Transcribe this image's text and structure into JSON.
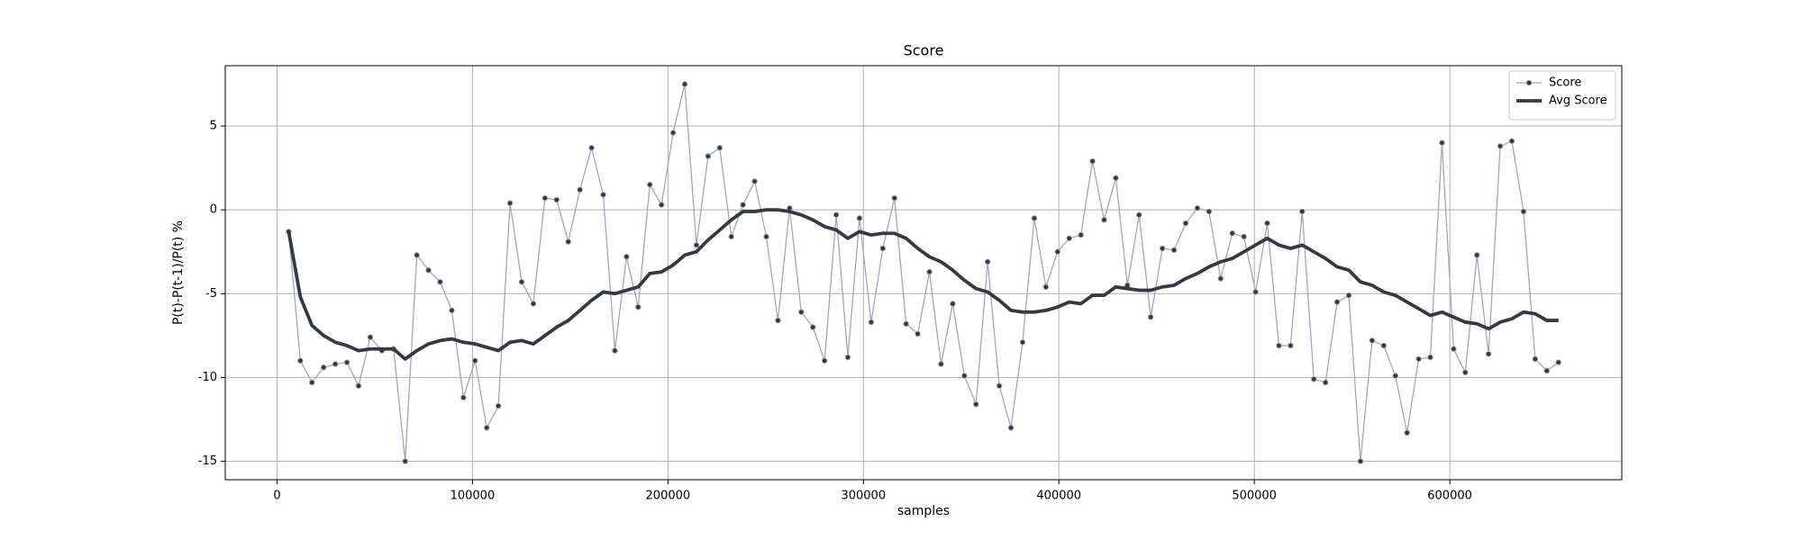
{
  "chart_data": {
    "type": "line",
    "title": "Score",
    "xlabel": "samples",
    "ylabel": "P(t)-P(t-1)/P(t) %",
    "x": [
      5960,
      11920,
      17880,
      23840,
      29800,
      35760,
      41720,
      47680,
      53640,
      59600,
      65560,
      71520,
      77480,
      83440,
      89400,
      95360,
      101320,
      107280,
      113240,
      119200,
      125160,
      131120,
      137080,
      143040,
      149000,
      154960,
      160920,
      166880,
      172840,
      178800,
      184760,
      190720,
      196680,
      202640,
      208600,
      214560,
      220520,
      226480,
      232440,
      238400,
      244360,
      250320,
      256280,
      262240,
      268200,
      274160,
      280120,
      286080,
      292040,
      298000,
      303960,
      309920,
      315880,
      321840,
      327800,
      333760,
      339720,
      345680,
      351640,
      357600,
      363560,
      369520,
      375480,
      381440,
      387400,
      393360,
      399320,
      405280,
      411240,
      417200,
      423160,
      429120,
      435080,
      441040,
      447000,
      452960,
      458920,
      464880,
      470840,
      476800,
      482760,
      488720,
      494680,
      500640,
      506600,
      512560,
      518520,
      524480,
      530440,
      536400,
      542360,
      548320,
      554280,
      560240,
      566200,
      572160,
      578120,
      584080,
      590040,
      596000,
      601960,
      607920,
      613880,
      619840,
      625800,
      631760,
      637720,
      643680,
      649640,
      655600
    ],
    "series": [
      {
        "name": "Score",
        "color": "#a3a7ba",
        "marker_color": "#2f3640",
        "marker": "o",
        "linewidth": 1.3,
        "values": [
          -1.3,
          -9.0,
          -10.3,
          -9.4,
          -9.2,
          -9.1,
          -10.5,
          -7.6,
          -8.4,
          -8.3,
          -15.0,
          -2.7,
          -3.6,
          -4.3,
          -6.0,
          -11.2,
          -9.0,
          -13.0,
          -11.7,
          0.4,
          -4.3,
          -5.6,
          0.7,
          0.6,
          -1.9,
          1.2,
          3.7,
          0.9,
          -8.4,
          -2.8,
          -5.8,
          1.5,
          0.3,
          4.6,
          7.5,
          -2.1,
          3.2,
          3.7,
          -1.6,
          0.3,
          1.7,
          -1.6,
          -6.6,
          0.1,
          -6.1,
          -7.0,
          -9.0,
          -0.3,
          -8.8,
          -0.5,
          -6.7,
          -2.3,
          0.7,
          -6.8,
          -7.4,
          -3.7,
          -9.2,
          -5.6,
          -9.9,
          -11.6,
          -3.1,
          -10.5,
          -13.0,
          -7.9,
          -0.5,
          -4.6,
          -2.5,
          -1.7,
          -1.5,
          2.9,
          -0.6,
          1.9,
          -4.5,
          -0.3,
          -6.4,
          -2.3,
          -2.4,
          -0.8,
          0.1,
          -0.1,
          -4.1,
          -1.4,
          -1.6,
          -4.9,
          -0.8,
          -8.1,
          -8.1,
          -0.1,
          -10.1,
          -10.3,
          -5.5,
          -5.1,
          -15.0,
          -7.8,
          -8.1,
          -9.9,
          -13.3,
          -8.9,
          -8.8,
          4.0,
          -8.3,
          -9.7,
          -2.7,
          -8.6,
          3.8,
          4.1,
          -0.1,
          -8.9,
          -9.6,
          -9.1
        ]
      },
      {
        "name": "Avg Score",
        "color": "#343a44",
        "linewidth": 3.8,
        "values": [
          -1.3,
          -5.2,
          -6.9,
          -7.5,
          -7.9,
          -8.1,
          -8.4,
          -8.3,
          -8.3,
          -8.3,
          -8.9,
          -8.4,
          -8.0,
          -7.8,
          -7.7,
          -7.9,
          -8.0,
          -8.2,
          -8.4,
          -7.9,
          -7.8,
          -8.0,
          -7.5,
          -7.0,
          -6.6,
          -6.0,
          -5.4,
          -4.9,
          -5.0,
          -4.8,
          -4.6,
          -3.8,
          -3.7,
          -3.3,
          -2.7,
          -2.5,
          -1.8,
          -1.2,
          -0.6,
          -0.1,
          -0.1,
          0.0,
          0.0,
          -0.1,
          -0.3,
          -0.6,
          -1.0,
          -1.2,
          -1.7,
          -1.3,
          -1.5,
          -1.4,
          -1.4,
          -1.7,
          -2.3,
          -2.8,
          -3.1,
          -3.6,
          -4.2,
          -4.7,
          -4.9,
          -5.4,
          -6.0,
          -6.1,
          -6.1,
          -6.0,
          -5.8,
          -5.5,
          -5.6,
          -5.1,
          -5.1,
          -4.6,
          -4.7,
          -4.8,
          -4.8,
          -4.6,
          -4.5,
          -4.1,
          -3.8,
          -3.4,
          -3.1,
          -2.9,
          -2.5,
          -2.1,
          -1.7,
          -2.1,
          -2.3,
          -2.1,
          -2.5,
          -2.9,
          -3.4,
          -3.6,
          -4.3,
          -4.5,
          -4.9,
          -5.1,
          -5.5,
          -5.9,
          -6.3,
          -6.1,
          -6.4,
          -6.7,
          -6.8,
          -7.1,
          -6.7,
          -6.5,
          -6.1,
          -6.2,
          -6.6,
          -6.6
        ]
      }
    ],
    "xlim": [
      -26500,
      688000
    ],
    "ylim": [
      -16.1,
      8.6
    ],
    "xticks": [
      0,
      100000,
      200000,
      300000,
      400000,
      500000,
      600000
    ],
    "yticks": [
      -15,
      -10,
      -5,
      0,
      5
    ],
    "grid": true,
    "legend": "upper right"
  }
}
